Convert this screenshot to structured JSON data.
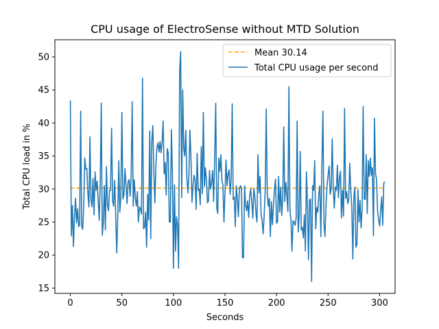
{
  "chart_data": {
    "type": "line",
    "title": "CPU usage of ElectroSense without MTD Solution",
    "xlabel": "Seconds",
    "ylabel": "Total CPU load in %",
    "xlim": [
      -15,
      315
    ],
    "ylim": [
      14.2,
      52.6
    ],
    "xticks": [
      0,
      50,
      100,
      150,
      200,
      250,
      300
    ],
    "yticks": [
      15,
      20,
      25,
      30,
      35,
      40,
      45,
      50
    ],
    "grid": false,
    "legend_position": "top-right",
    "colors": {
      "mean": "#ffa500",
      "series": "#1f77b4"
    },
    "mean": {
      "name": "Mean 30.14",
      "value": 30.14,
      "x": [
        0,
        303
      ],
      "style": "dashed"
    },
    "series": [
      {
        "name": "Total CPU usage per second",
        "x_start": 0,
        "x_step": 1,
        "values": [
          43.4,
          22.9,
          27.5,
          21.3,
          25.8,
          28.6,
          24.9,
          27.0,
          24.3,
          24.6,
          41.8,
          24.3,
          23.9,
          27.4,
          34.7,
          33.0,
          33.1,
          29.3,
          27.3,
          37.9,
          28.4,
          27.3,
          31.6,
          26.1,
          32.6,
          29.8,
          31.2,
          28.4,
          25.3,
          30.7,
          43.0,
          23.0,
          25.0,
          30.5,
          23.8,
          33.4,
          27.6,
          26.7,
          29.8,
          29.8,
          39.2,
          28.2,
          27.4,
          31.3,
          26.0,
          20.3,
          25.8,
          34.3,
          26.5,
          28.9,
          41.6,
          28.5,
          29.1,
          33.1,
          30.6,
          27.8,
          31.1,
          31.4,
          28.9,
          31.9,
          43.2,
          27.4,
          31.4,
          28.7,
          27.4,
          29.6,
          25.0,
          27.3,
          27.0,
          26.2,
          46.8,
          24.0,
          24.2,
          26.5,
          21.2,
          29.2,
          25.3,
          38.8,
          22.5,
          37.2,
          39.6,
          32.7,
          27.9,
          33.7,
          36.3,
          37.0,
          35.6,
          37.2,
          35.5,
          37.1,
          40.3,
          32.3,
          34.0,
          29.1,
          36.1,
          35.5,
          25.0,
          25.0,
          39.0,
          32.5,
          18.0,
          30.6,
          20.6,
          25.8,
          24.5,
          18.0,
          47.8,
          50.8,
          28.7,
          45.0,
          36.1,
          35.0,
          38.9,
          31.7,
          29.4,
          32.2,
          38.9,
          34.9,
          28.0,
          30.5,
          32.1,
          31.4,
          26.9,
          35.4,
          29.8,
          30.0,
          27.6,
          36.4,
          29.3,
          41.6,
          30.4,
          33.2,
          31.4,
          27.9,
          28.2,
          32.8,
          30.0,
          30.9,
          32.8,
          28.1,
          34.8,
          43.0,
          27.1,
          26.3,
          34.7,
          32.7,
          35.2,
          31.3,
          30.6,
          25.0,
          29.5,
          34.4,
          30.5,
          32.2,
          32.9,
          29.2,
          31.5,
          42.9,
          28.4,
          28.8,
          24.3,
          30.5,
          28.6,
          25.8,
          30.1,
          30.5,
          30.2,
          19.6,
          19.6,
          30.5,
          27.5,
          26.7,
          28.2,
          25.7,
          29.0,
          30.0,
          28.1,
          25.6,
          30.1,
          28.8,
          26.4,
          25.0,
          35.2,
          29.4,
          31.9,
          26.1,
          25.3,
          23.2,
          26.0,
          29.8,
          42.1,
          29.3,
          27.4,
          28.6,
          22.8,
          28.1,
          24.6,
          27.5,
          30.0,
          31.5,
          24.8,
          25.1,
          31.9,
          26.5,
          30.3,
          26.0,
          28.4,
          39.4,
          28.1,
          31.0,
          29.1,
          26.6,
          45.5,
          26.9,
          25.2,
          20.6,
          25.2,
          25.0,
          24.5,
          25.6,
          40.3,
          23.5,
          26.0,
          35.7,
          23.8,
          24.2,
          22.6,
          26.1,
          20.6,
          32.6,
          27.8,
          19.3,
          28.3,
          28.5,
          16.0,
          30.5,
          29.8,
          34.3,
          24.0,
          27.2,
          26.5,
          29.2,
          30.5,
          22.8,
          33.5,
          41.8,
          24.8,
          22.8,
          27.6,
          30.5,
          32.1,
          33.5,
          29.2,
          30.0,
          37.6,
          30.3,
          27.1,
          30.3,
          29.8,
          33.6,
          28.7,
          31.6,
          32.7,
          25.6,
          29.8,
          25.9,
          42.2,
          28.6,
          29.6,
          27.8,
          28.3,
          33.9,
          29.9,
          27.3,
          19.4,
          28.7,
          30.3,
          21.2,
          21.6,
          29.9,
          25.0,
          28.3,
          24.1,
          27.0,
          42.5,
          28.5,
          28.4,
          35.2,
          26.3,
          34.3,
          31.9,
          34.7,
          32.1,
          33.2,
          22.9,
          40.7,
          32.3,
          31.5,
          26.7,
          25.3,
          24.4,
          26.8,
          28.8,
          24.5,
          30.9,
          31.1
        ]
      }
    ]
  }
}
